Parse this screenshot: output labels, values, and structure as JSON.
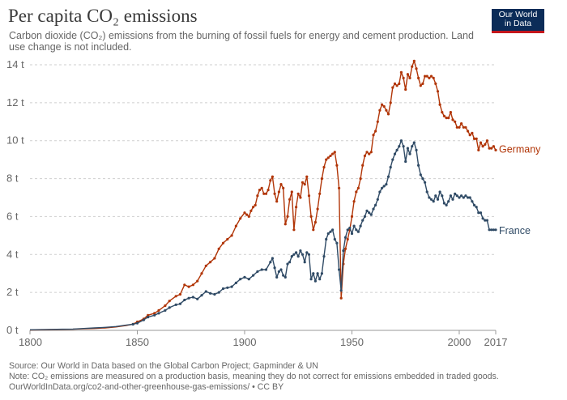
{
  "header": {
    "title": "Per capita CO₂ emissions",
    "subtitle": "Carbon dioxide (CO₂) emissions from the burning of fossil fuels for energy and cement production. Land use change is not included.",
    "logo_line1": "Our World",
    "logo_line2": "in Data"
  },
  "footer": {
    "source": "Source: Our World in Data based on the Global Carbon Project; Gapminder & UN",
    "note": "Note: CO₂ emissions are measured on a production basis, meaning they do not correct for emissions embedded in traded goods.",
    "link": "OurWorldInData.org/co2-and-other-greenhouse-gas-emissions/ • CC BY"
  },
  "chart_data": {
    "type": "line",
    "title": "Per capita CO₂ emissions",
    "xlabel": "",
    "ylabel": "",
    "xlim": [
      1800,
      2017
    ],
    "ylim": [
      0,
      14
    ],
    "x_ticks": [
      "1800",
      "1850",
      "1900",
      "1950",
      "2000",
      "2017"
    ],
    "y_ticks": [
      "0 t",
      "2 t",
      "4 t",
      "6 t",
      "8 t",
      "10 t",
      "12 t",
      "14 t"
    ],
    "grid": "horizontal dashed",
    "legend": "labels at line ends (right)",
    "series": [
      {
        "name": "Germany",
        "color": "#b13507",
        "points": [
          [
            1800,
            0.02
          ],
          [
            1805,
            0.03
          ],
          [
            1810,
            0.04
          ],
          [
            1815,
            0.05
          ],
          [
            1820,
            0.06
          ],
          [
            1825,
            0.08
          ],
          [
            1830,
            0.1
          ],
          [
            1835,
            0.13
          ],
          [
            1840,
            0.18
          ],
          [
            1845,
            0.26
          ],
          [
            1848,
            0.33
          ],
          [
            1850,
            0.45
          ],
          [
            1853,
            0.6
          ],
          [
            1855,
            0.8
          ],
          [
            1858,
            0.9
          ],
          [
            1860,
            1.05
          ],
          [
            1863,
            1.3
          ],
          [
            1865,
            1.55
          ],
          [
            1868,
            1.8
          ],
          [
            1870,
            1.9
          ],
          [
            1872,
            2.4
          ],
          [
            1874,
            2.3
          ],
          [
            1876,
            2.4
          ],
          [
            1878,
            2.6
          ],
          [
            1880,
            3.0
          ],
          [
            1882,
            3.4
          ],
          [
            1884,
            3.6
          ],
          [
            1886,
            3.8
          ],
          [
            1888,
            4.3
          ],
          [
            1890,
            4.6
          ],
          [
            1892,
            4.8
          ],
          [
            1894,
            5.0
          ],
          [
            1896,
            5.5
          ],
          [
            1898,
            5.9
          ],
          [
            1900,
            6.2
          ],
          [
            1901,
            6.1
          ],
          [
            1902,
            6.0
          ],
          [
            1903,
            6.3
          ],
          [
            1904,
            6.5
          ],
          [
            1905,
            6.6
          ],
          [
            1906,
            7.1
          ],
          [
            1907,
            7.4
          ],
          [
            1908,
            7.5
          ],
          [
            1909,
            7.2
          ],
          [
            1910,
            7.2
          ],
          [
            1911,
            7.4
          ],
          [
            1912,
            7.9
          ],
          [
            1913,
            8.1
          ],
          [
            1914,
            7.2
          ],
          [
            1915,
            6.8
          ],
          [
            1916,
            7.3
          ],
          [
            1917,
            7.7
          ],
          [
            1918,
            7.5
          ],
          [
            1919,
            5.6
          ],
          [
            1920,
            6.0
          ],
          [
            1921,
            6.9
          ],
          [
            1922,
            7.3
          ],
          [
            1923,
            5.3
          ],
          [
            1924,
            6.5
          ],
          [
            1925,
            7.2
          ],
          [
            1926,
            7.0
          ],
          [
            1927,
            7.8
          ],
          [
            1928,
            7.7
          ],
          [
            1929,
            8.1
          ],
          [
            1930,
            7.1
          ],
          [
            1931,
            6.0
          ],
          [
            1932,
            5.3
          ],
          [
            1933,
            5.7
          ],
          [
            1934,
            6.4
          ],
          [
            1935,
            7.2
          ],
          [
            1936,
            8.0
          ],
          [
            1937,
            8.6
          ],
          [
            1938,
            9.0
          ],
          [
            1939,
            9.1
          ],
          [
            1940,
            9.2
          ],
          [
            1941,
            9.3
          ],
          [
            1942,
            9.4
          ],
          [
            1943,
            8.7
          ],
          [
            1944,
            7.5
          ],
          [
            1945,
            1.7
          ],
          [
            1946,
            3.5
          ],
          [
            1947,
            4.3
          ],
          [
            1948,
            4.8
          ],
          [
            1949,
            5.3
          ],
          [
            1950,
            6.0
          ],
          [
            1951,
            6.8
          ],
          [
            1952,
            7.3
          ],
          [
            1953,
            7.5
          ],
          [
            1954,
            8.0
          ],
          [
            1955,
            8.7
          ],
          [
            1956,
            9.2
          ],
          [
            1957,
            9.4
          ],
          [
            1958,
            9.3
          ],
          [
            1959,
            9.4
          ],
          [
            1960,
            10.3
          ],
          [
            1961,
            10.5
          ],
          [
            1962,
            11.0
          ],
          [
            1963,
            11.6
          ],
          [
            1964,
            11.9
          ],
          [
            1965,
            11.8
          ],
          [
            1966,
            11.6
          ],
          [
            1967,
            11.4
          ],
          [
            1968,
            12.0
          ],
          [
            1969,
            12.8
          ],
          [
            1970,
            13.0
          ],
          [
            1971,
            12.9
          ],
          [
            1972,
            13.0
          ],
          [
            1973,
            13.6
          ],
          [
            1974,
            13.3
          ],
          [
            1975,
            12.7
          ],
          [
            1976,
            13.5
          ],
          [
            1977,
            13.3
          ],
          [
            1978,
            13.9
          ],
          [
            1979,
            14.2
          ],
          [
            1980,
            13.8
          ],
          [
            1981,
            13.3
          ],
          [
            1982,
            12.9
          ],
          [
            1983,
            13.0
          ],
          [
            1984,
            13.4
          ],
          [
            1985,
            13.4
          ],
          [
            1986,
            13.3
          ],
          [
            1987,
            13.4
          ],
          [
            1988,
            13.3
          ],
          [
            1989,
            13.0
          ],
          [
            1990,
            12.6
          ],
          [
            1991,
            11.9
          ],
          [
            1992,
            11.5
          ],
          [
            1993,
            11.3
          ],
          [
            1994,
            11.2
          ],
          [
            1995,
            11.2
          ],
          [
            1996,
            11.5
          ],
          [
            1997,
            11.1
          ],
          [
            1998,
            11.0
          ],
          [
            1999,
            10.7
          ],
          [
            2000,
            10.7
          ],
          [
            2001,
            10.9
          ],
          [
            2002,
            10.7
          ],
          [
            2003,
            10.7
          ],
          [
            2004,
            10.5
          ],
          [
            2005,
            10.3
          ],
          [
            2006,
            10.4
          ],
          [
            2007,
            10.1
          ],
          [
            2008,
            10.1
          ],
          [
            2009,
            9.5
          ],
          [
            2010,
            9.9
          ],
          [
            2011,
            9.7
          ],
          [
            2012,
            9.8
          ],
          [
            2013,
            10.0
          ],
          [
            2014,
            9.6
          ],
          [
            2015,
            9.6
          ],
          [
            2016,
            9.7
          ],
          [
            2017,
            9.5
          ]
        ]
      },
      {
        "name": "France",
        "color": "#2f4a65",
        "points": [
          [
            1800,
            0.03
          ],
          [
            1805,
            0.04
          ],
          [
            1810,
            0.05
          ],
          [
            1815,
            0.06
          ],
          [
            1820,
            0.07
          ],
          [
            1825,
            0.1
          ],
          [
            1830,
            0.13
          ],
          [
            1835,
            0.16
          ],
          [
            1840,
            0.2
          ],
          [
            1845,
            0.28
          ],
          [
            1848,
            0.32
          ],
          [
            1850,
            0.38
          ],
          [
            1853,
            0.55
          ],
          [
            1855,
            0.7
          ],
          [
            1858,
            0.8
          ],
          [
            1860,
            0.9
          ],
          [
            1863,
            1.05
          ],
          [
            1865,
            1.2
          ],
          [
            1868,
            1.35
          ],
          [
            1870,
            1.4
          ],
          [
            1872,
            1.6
          ],
          [
            1874,
            1.7
          ],
          [
            1876,
            1.75
          ],
          [
            1878,
            1.65
          ],
          [
            1880,
            1.85
          ],
          [
            1882,
            2.05
          ],
          [
            1884,
            1.95
          ],
          [
            1886,
            1.9
          ],
          [
            1888,
            2.0
          ],
          [
            1890,
            2.2
          ],
          [
            1892,
            2.25
          ],
          [
            1894,
            2.3
          ],
          [
            1896,
            2.5
          ],
          [
            1898,
            2.7
          ],
          [
            1900,
            2.8
          ],
          [
            1902,
            2.7
          ],
          [
            1904,
            2.9
          ],
          [
            1906,
            3.1
          ],
          [
            1908,
            3.2
          ],
          [
            1910,
            3.2
          ],
          [
            1912,
            3.6
          ],
          [
            1913,
            3.8
          ],
          [
            1914,
            3.3
          ],
          [
            1915,
            2.8
          ],
          [
            1916,
            3.1
          ],
          [
            1917,
            3.2
          ],
          [
            1918,
            2.9
          ],
          [
            1919,
            2.8
          ],
          [
            1920,
            3.5
          ],
          [
            1921,
            3.6
          ],
          [
            1922,
            3.9
          ],
          [
            1923,
            4.0
          ],
          [
            1924,
            4.1
          ],
          [
            1925,
            3.9
          ],
          [
            1926,
            4.2
          ],
          [
            1927,
            4.0
          ],
          [
            1928,
            3.6
          ],
          [
            1929,
            4.1
          ],
          [
            1930,
            4.0
          ],
          [
            1931,
            2.7
          ],
          [
            1932,
            3.0
          ],
          [
            1933,
            2.6
          ],
          [
            1934,
            3.0
          ],
          [
            1935,
            2.7
          ],
          [
            1936,
            3.0
          ],
          [
            1937,
            3.9
          ],
          [
            1938,
            4.8
          ],
          [
            1939,
            5.1
          ],
          [
            1940,
            5.2
          ],
          [
            1941,
            5.3
          ],
          [
            1942,
            4.8
          ],
          [
            1943,
            4.6
          ],
          [
            1944,
            3.2
          ],
          [
            1945,
            2.1
          ],
          [
            1946,
            4.2
          ],
          [
            1947,
            4.9
          ],
          [
            1948,
            5.3
          ],
          [
            1949,
            5.4
          ],
          [
            1950,
            5.1
          ],
          [
            1951,
            5.5
          ],
          [
            1952,
            5.3
          ],
          [
            1953,
            5.2
          ],
          [
            1954,
            5.5
          ],
          [
            1955,
            5.8
          ],
          [
            1956,
            6.0
          ],
          [
            1957,
            6.3
          ],
          [
            1958,
            6.2
          ],
          [
            1959,
            6.1
          ],
          [
            1960,
            6.4
          ],
          [
            1961,
            6.6
          ],
          [
            1962,
            6.9
          ],
          [
            1963,
            7.3
          ],
          [
            1964,
            7.5
          ],
          [
            1965,
            7.6
          ],
          [
            1966,
            7.7
          ],
          [
            1967,
            8.1
          ],
          [
            1968,
            8.6
          ],
          [
            1969,
            9.0
          ],
          [
            1970,
            9.3
          ],
          [
            1971,
            9.5
          ],
          [
            1972,
            9.7
          ],
          [
            1973,
            10.0
          ],
          [
            1974,
            9.7
          ],
          [
            1975,
            8.9
          ],
          [
            1976,
            9.6
          ],
          [
            1977,
            9.3
          ],
          [
            1978,
            9.7
          ],
          [
            1979,
            9.9
          ],
          [
            1980,
            9.5
          ],
          [
            1981,
            8.7
          ],
          [
            1982,
            8.2
          ],
          [
            1983,
            8.0
          ],
          [
            1984,
            7.8
          ],
          [
            1985,
            7.3
          ],
          [
            1986,
            7.0
          ],
          [
            1987,
            6.9
          ],
          [
            1988,
            6.8
          ],
          [
            1989,
            7.1
          ],
          [
            1990,
            6.9
          ],
          [
            1991,
            7.3
          ],
          [
            1992,
            7.1
          ],
          [
            1993,
            6.7
          ],
          [
            1994,
            6.6
          ],
          [
            1995,
            6.8
          ],
          [
            1996,
            7.1
          ],
          [
            1997,
            6.9
          ],
          [
            1998,
            7.2
          ],
          [
            1999,
            7.1
          ],
          [
            2000,
            7.0
          ],
          [
            2001,
            7.1
          ],
          [
            2002,
            7.0
          ],
          [
            2003,
            7.1
          ],
          [
            2004,
            7.0
          ],
          [
            2005,
            7.0
          ],
          [
            2006,
            6.8
          ],
          [
            2007,
            6.6
          ],
          [
            2008,
            6.5
          ],
          [
            2009,
            6.2
          ],
          [
            2010,
            6.2
          ],
          [
            2011,
            5.9
          ],
          [
            2012,
            5.8
          ],
          [
            2013,
            5.8
          ],
          [
            2014,
            5.3
          ],
          [
            2015,
            5.3
          ],
          [
            2016,
            5.3
          ],
          [
            2017,
            5.3
          ]
        ]
      }
    ]
  }
}
